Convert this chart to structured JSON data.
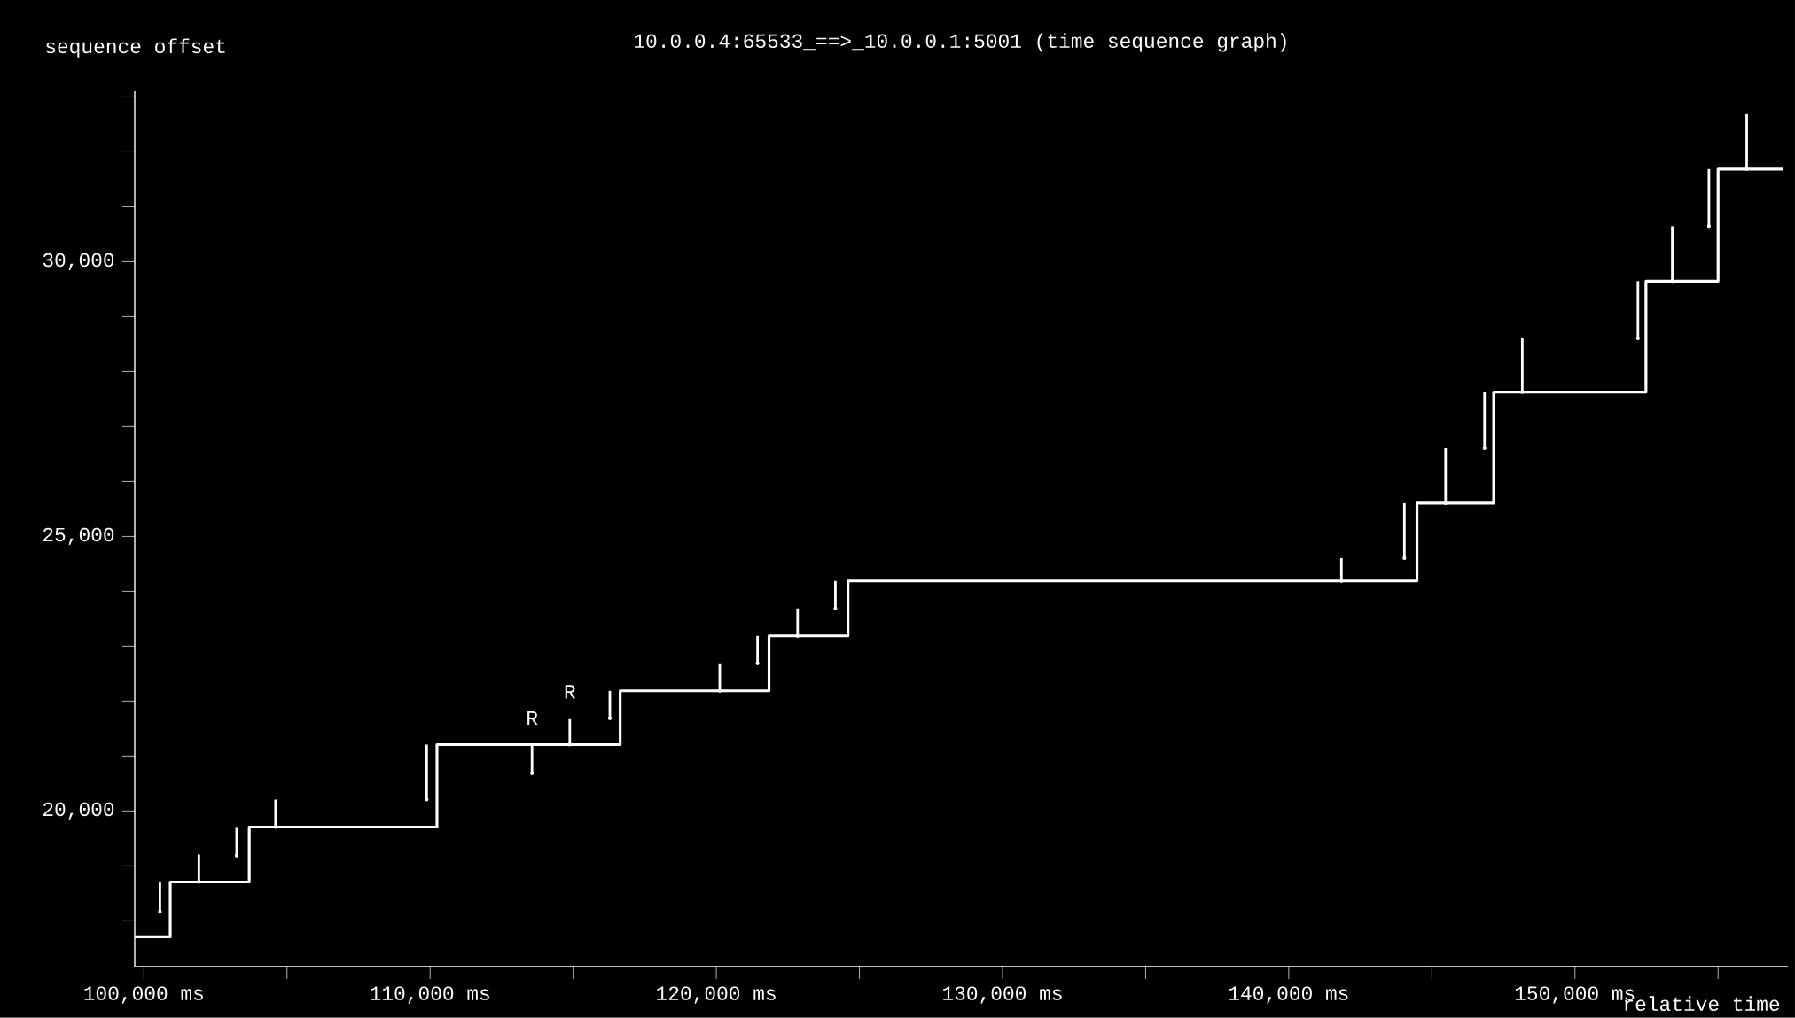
{
  "chart_data": {
    "type": "step",
    "title": "10.0.0.4:65533_==>_10.0.0.1:5001 (time sequence graph)",
    "xlabel": "relative time",
    "ylabel": "sequence offset",
    "xlim": [
      99680,
      157440
    ],
    "ylim": [
      17167,
      33104
    ],
    "xticks": [
      {
        "value": 100000,
        "label": "100,000 ms"
      },
      {
        "value": 105000,
        "label": null
      },
      {
        "value": 110000,
        "label": "110,000 ms"
      },
      {
        "value": 115000,
        "label": null
      },
      {
        "value": 120000,
        "label": "120,000 ms"
      },
      {
        "value": 125000,
        "label": null
      },
      {
        "value": 130000,
        "label": "130,000 ms"
      },
      {
        "value": 135000,
        "label": null
      },
      {
        "value": 140000,
        "label": "140,000 ms"
      },
      {
        "value": 145000,
        "label": null
      },
      {
        "value": 150000,
        "label": "150,000 ms"
      },
      {
        "value": 155000,
        "label": null
      }
    ],
    "yticks": [
      {
        "value": 18000,
        "label": null
      },
      {
        "value": 19000,
        "label": null
      },
      {
        "value": 20000,
        "label": "20,000"
      },
      {
        "value": 21000,
        "label": null
      },
      {
        "value": 22000,
        "label": null
      },
      {
        "value": 23000,
        "label": null
      },
      {
        "value": 24000,
        "label": null
      },
      {
        "value": 25000,
        "label": "25,000"
      },
      {
        "value": 26000,
        "label": null
      },
      {
        "value": 27000,
        "label": null
      },
      {
        "value": 28000,
        "label": null
      },
      {
        "value": 29000,
        "label": null
      },
      {
        "value": 30000,
        "label": "30,000"
      },
      {
        "value": 31000,
        "label": null
      },
      {
        "value": 32000,
        "label": null
      },
      {
        "value": 33000,
        "label": null
      }
    ],
    "series": [
      {
        "color": "#ffffff",
        "x": [
          99680,
          100920,
          103680,
          110240,
          116640,
          121840,
          124600,
          144480,
          147160,
          152480,
          155000,
          157280
        ],
        "values": [
          17708,
          18708,
          19708,
          21208,
          22187,
          23187,
          24187,
          25604,
          27625,
          29646,
          31687,
          31687
        ]
      },
      {
        "type": "scatter",
        "color": "#ffffff",
        "x": [
          100560,
          101920,
          103240,
          104600,
          109880,
          113560,
          114880,
          116280,
          120120,
          121440,
          122840,
          124160,
          141840,
          144040,
          145480,
          146840,
          148160,
          152200,
          153400,
          154680,
          156000
        ],
        "values": [
          18166,
          18708,
          19187,
          19708,
          20208,
          20687,
          21208,
          21687,
          22187,
          22687,
          23187,
          23687,
          24187,
          24604,
          25604,
          26604,
          27625,
          28604,
          29646,
          30646,
          31687
        ],
        "errors": [
          [
            18166,
            18708
          ],
          [
            18708,
            19208
          ],
          [
            19187,
            19708
          ],
          [
            19708,
            20208
          ],
          [
            20208,
            21208
          ],
          [
            20687,
            21208
          ],
          [
            21208,
            21687
          ],
          [
            21687,
            22187
          ],
          [
            22187,
            22687
          ],
          [
            22687,
            23187
          ],
          [
            23187,
            23687
          ],
          [
            23687,
            24187
          ],
          [
            24187,
            24604
          ],
          [
            24604,
            25604
          ],
          [
            25604,
            26604
          ],
          [
            26604,
            27625
          ],
          [
            27625,
            28604
          ],
          [
            28604,
            29646
          ],
          [
            29646,
            30646
          ],
          [
            30646,
            31687
          ],
          [
            31687,
            32687
          ]
        ]
      }
    ],
    "annotations": [
      {
        "text": "R",
        "x": 113560,
        "y": 21208
      },
      {
        "text": "R",
        "x": 114880,
        "y": 21687
      }
    ]
  }
}
